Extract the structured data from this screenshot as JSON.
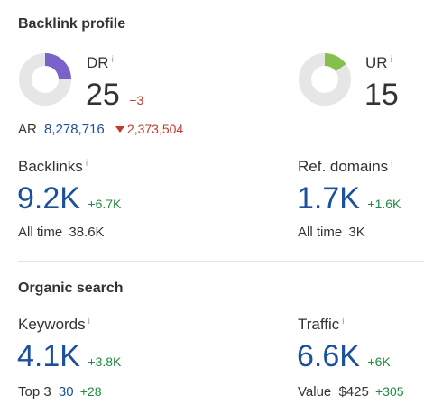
{
  "backlink_profile": {
    "title": "Backlink profile",
    "dr": {
      "label": "DR",
      "value": "25",
      "delta": "−3",
      "fraction": 0.25,
      "color": "#7a62c9"
    },
    "ur": {
      "label": "UR",
      "value": "15",
      "fraction": 0.15,
      "color": "#86c04c"
    },
    "ar": {
      "label": "AR",
      "value": "8,278,716",
      "delta": "2,373,504"
    },
    "backlinks": {
      "label": "Backlinks",
      "value": "9.2K",
      "delta": "+6.7K",
      "all_time_label": "All time",
      "all_time_value": "38.6K"
    },
    "ref_domains": {
      "label": "Ref. domains",
      "value": "1.7K",
      "delta": "+1.6K",
      "all_time_label": "All time",
      "all_time_value": "3K"
    }
  },
  "organic_search": {
    "title": "Organic search",
    "keywords": {
      "label": "Keywords",
      "value": "4.1K",
      "delta": "+3.8K",
      "sub_label": "Top 3",
      "sub_value": "30",
      "sub_delta": "+28"
    },
    "traffic": {
      "label": "Traffic",
      "value": "6.6K",
      "delta": "+6K",
      "sub_label": "Value",
      "sub_value": "$425",
      "sub_delta": "+305"
    }
  },
  "info_glyph": "i",
  "colors": {
    "accent_blue": "#1c4f9c",
    "positive": "#1e8a3f",
    "negative": "#c0392b",
    "ring_track": "#e6e6e6"
  }
}
